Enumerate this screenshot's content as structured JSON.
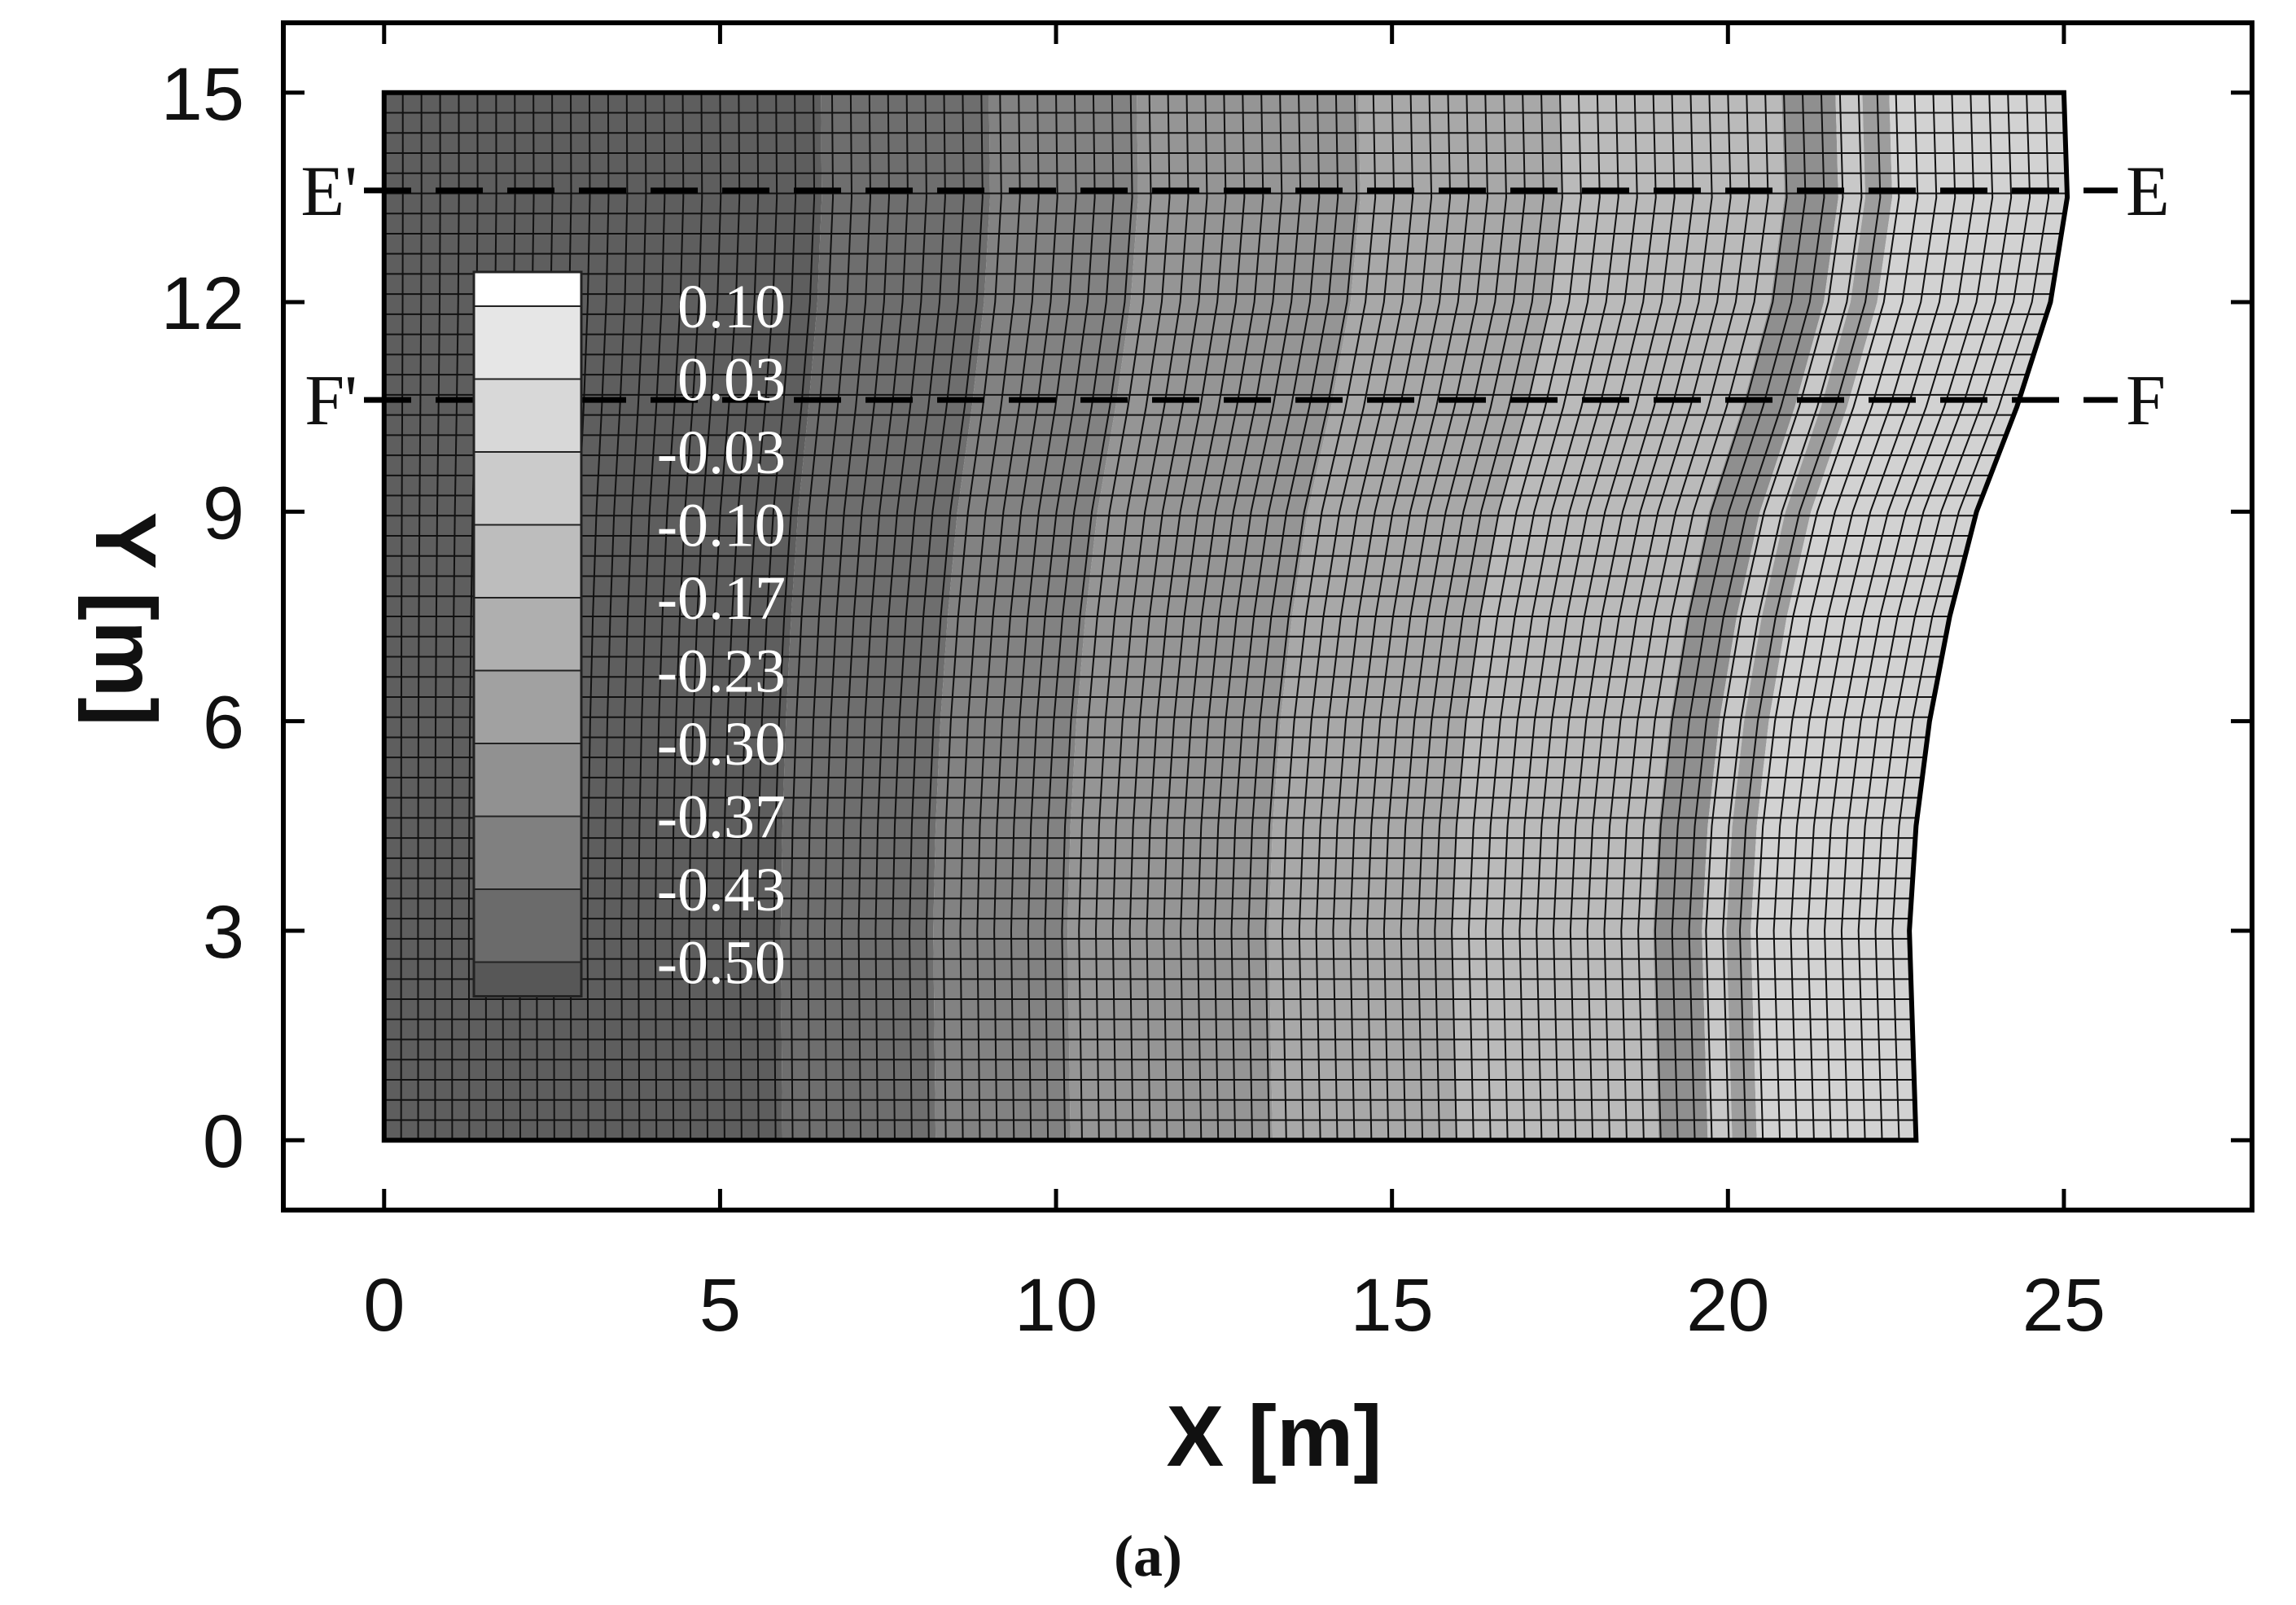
{
  "chart_data": {
    "type": "heatmap",
    "title": "",
    "xlabel": "X [m]",
    "ylabel": "Y [m]",
    "xlim": [
      -1.5,
      27.8
    ],
    "ylim": [
      -1.0,
      16.0
    ],
    "x_ticks": [
      0,
      5,
      10,
      15,
      20,
      25
    ],
    "y_ticks": [
      0,
      3,
      6,
      9,
      12,
      15
    ],
    "grid": false,
    "mesh_outline": {
      "left_x": 0,
      "bottom_y": 0,
      "top_y": 15,
      "top_right_x": 25.0,
      "right_edge": [
        {
          "y": 15,
          "x": 25.0
        },
        {
          "y": 13.5,
          "x": 25.05
        },
        {
          "y": 12,
          "x": 24.8
        },
        {
          "y": 10.5,
          "x": 24.3
        },
        {
          "y": 9,
          "x": 23.7
        },
        {
          "y": 7.5,
          "x": 23.3
        },
        {
          "y": 6,
          "x": 23.0
        },
        {
          "y": 4.5,
          "x": 22.8
        },
        {
          "y": 3,
          "x": 22.7
        },
        {
          "y": 1.5,
          "x": 22.75
        },
        {
          "y": 0,
          "x": 22.8
        }
      ],
      "columns": 90,
      "rows": 52
    },
    "colorbar": {
      "placement": "inside-left",
      "labels": [
        "0.10",
        "0.03",
        "-0.03",
        "-0.10",
        "-0.17",
        "-0.23",
        "-0.30",
        "-0.37",
        "-0.43",
        "-0.50"
      ],
      "colors": [
        "#ffffff",
        "#e6e6e6",
        "#d8d8d8",
        "#cbcbcb",
        "#bdbdbd",
        "#afafaf",
        "#a1a1a1",
        "#919191",
        "#808080",
        "#6b6b6b",
        "#575757"
      ]
    },
    "contour_bands": [
      {
        "x_start": 0,
        "x_end": 6.5,
        "color": "#5e5e5e"
      },
      {
        "x_start": 6.5,
        "x_end": 9.0,
        "color": "#6e6e6e"
      },
      {
        "x_start": 9.0,
        "x_end": 11.2,
        "color": "#828282"
      },
      {
        "x_start": 11.2,
        "x_end": 14.5,
        "color": "#959595"
      },
      {
        "x_start": 14.5,
        "x_end": 17.5,
        "color": "#a8a8a8"
      },
      {
        "x_start": 17.5,
        "x_end": 20.8,
        "color": "#bababa"
      },
      {
        "x_start": 20.8,
        "x_end": 21.6,
        "color": "#8f8f8f"
      },
      {
        "x_start": 21.6,
        "x_end": 22.0,
        "color": "#c8c8c8"
      },
      {
        "x_start": 22.0,
        "x_end": 22.4,
        "color": "#9d9d9d"
      },
      {
        "x_start": 22.4,
        "x_end": 30,
        "color": "#d2d2d2"
      }
    ],
    "annotations": [
      {
        "left_label": "E'",
        "right_label": "E",
        "y": 13.6,
        "x_from": -0.3,
        "x_to": 25.8,
        "style": "dashed"
      },
      {
        "left_label": "F'",
        "right_label": "F",
        "y": 10.6,
        "x_from": -0.3,
        "x_to": 25.8,
        "style": "dashed"
      }
    ]
  },
  "caption": "(a)"
}
